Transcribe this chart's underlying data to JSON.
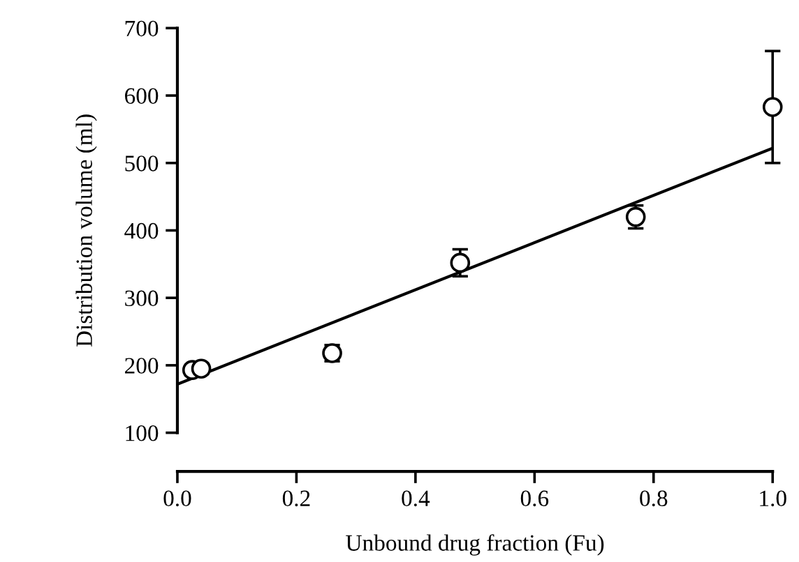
{
  "chart_data": {
    "type": "scatter",
    "xlabel": "Unbound drug fraction (Fu)",
    "ylabel": "Distribution volume (ml)",
    "xlim": [
      0,
      1
    ],
    "ylim": [
      100,
      700
    ],
    "xticks": [
      {
        "value": 0,
        "label": "0.0"
      },
      0.2,
      0.4,
      0.6,
      0.8,
      {
        "value": 1,
        "label": "1.0"
      }
    ],
    "yticks": [
      100,
      200,
      300,
      400,
      500,
      600,
      700
    ],
    "grid": false,
    "legend": false,
    "series": [
      {
        "marker": "circle",
        "color": "#000000",
        "x": [
          0.025,
          0.04,
          0.26,
          0.475,
          0.77,
          1.0
        ],
        "values": [
          193,
          195,
          218,
          352,
          420,
          583
        ],
        "errors": [
          8,
          8,
          12,
          20,
          17,
          83
        ]
      },
      {
        "type": "line",
        "color": "#000000",
        "line_style": "solid",
        "x": [
          0,
          1.0
        ],
        "values": [
          172,
          522
        ]
      }
    ]
  }
}
